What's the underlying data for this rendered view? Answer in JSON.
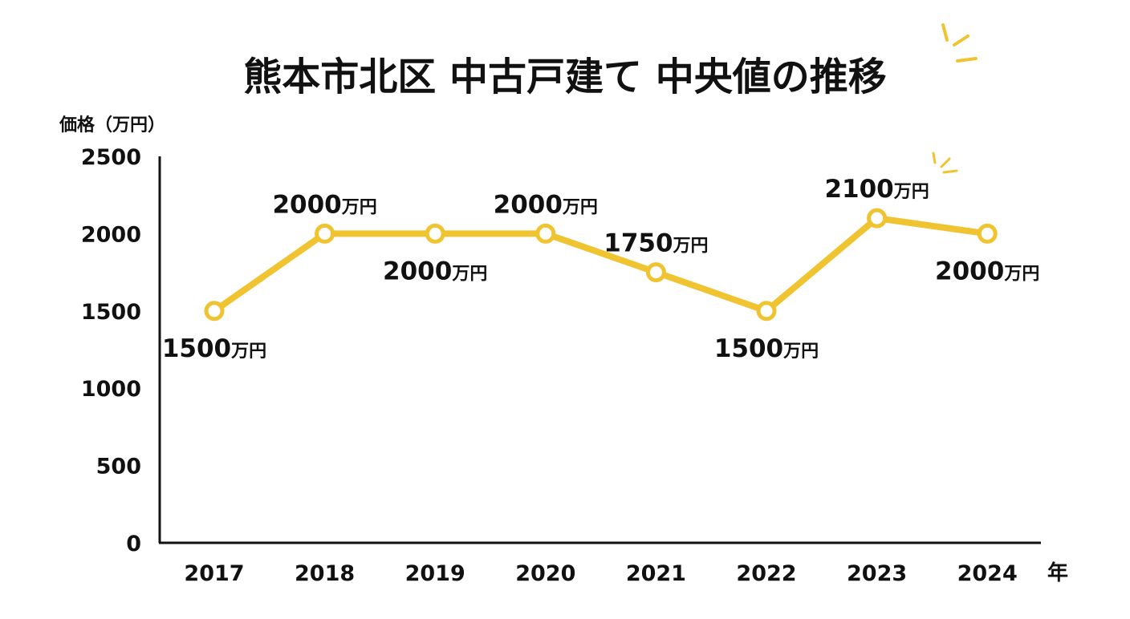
{
  "chart_data": {
    "type": "line",
    "title": "熊本市北区 中古戸建て 中央値の推移",
    "ylabel": "価格（万円）",
    "xlabel": "年",
    "categories": [
      "2017",
      "2018",
      "2019",
      "2020",
      "2021",
      "2022",
      "2023",
      "2024"
    ],
    "values": [
      1500,
      2000,
      2000,
      2000,
      1750,
      1500,
      2100,
      2000
    ],
    "value_labels": [
      "1500",
      "2000",
      "2000",
      "2000",
      "1750",
      "1500",
      "2100",
      "2000"
    ],
    "value_unit": "万円",
    "label_positions": [
      "below",
      "above",
      "below",
      "above",
      "above",
      "below",
      "above",
      "below"
    ],
    "ylim": [
      0,
      2500
    ],
    "yticks": [
      "0",
      "500",
      "1000",
      "1500",
      "2000",
      "2500"
    ],
    "grid": false,
    "colors": {
      "line": "#F0C330",
      "marker_fill": "#FFFFFF",
      "axis": "#111111",
      "text": "#111111"
    }
  }
}
